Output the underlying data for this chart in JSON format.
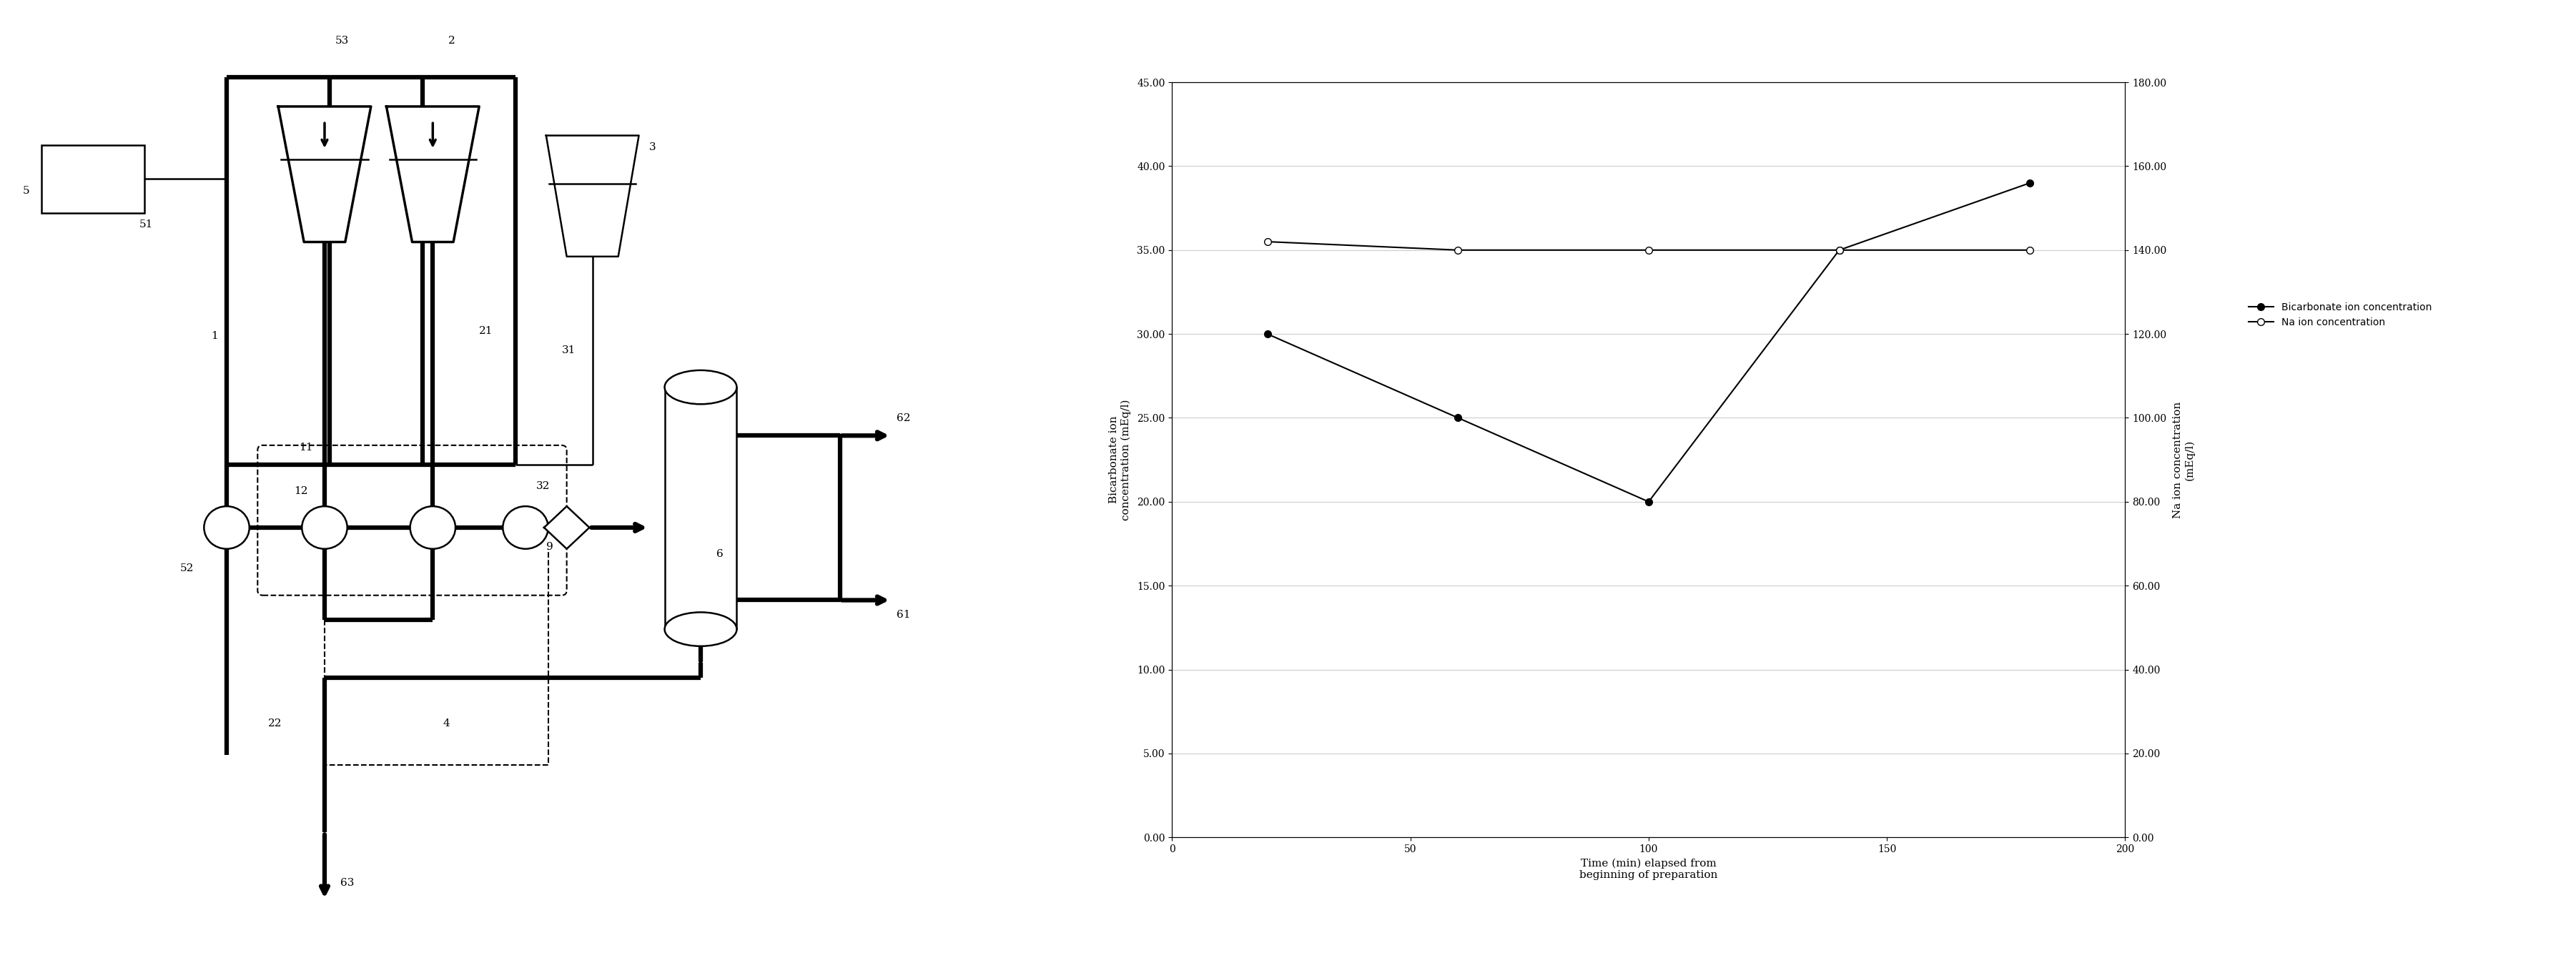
{
  "fig_width": 36.03,
  "fig_height": 13.54,
  "bg_color": "#ffffff",
  "chart": {
    "x_bicarb": [
      20,
      60,
      100,
      140,
      180
    ],
    "y_bicarb": [
      30,
      25,
      20,
      35,
      39
    ],
    "x_na": [
      20,
      60,
      100,
      140,
      180
    ],
    "y_na_right": [
      142,
      140,
      140,
      140,
      140
    ],
    "xlim": [
      0,
      200
    ],
    "ylim_left": [
      0,
      45
    ],
    "ylim_right": [
      0,
      180
    ],
    "xticks": [
      0,
      50,
      100,
      150,
      200
    ],
    "yticks_left": [
      0.0,
      5.0,
      10.0,
      15.0,
      20.0,
      25.0,
      30.0,
      35.0,
      40.0,
      45.0
    ],
    "yticks_right": [
      0.0,
      20.0,
      40.0,
      60.0,
      80.0,
      100.0,
      120.0,
      140.0,
      160.0,
      180.0
    ],
    "xlabel": "Time (min) elapsed from\nbeginning of preparation",
    "ylabel_left": "Bicarbonate ion\nconcentration (mEq/l)",
    "ylabel_right": "Na ion concentration\n(mEq/l)",
    "legend_bicarb": "Bicarbonate ion concentration",
    "legend_na": "Na ion concentration",
    "grid_color": "#cccccc"
  }
}
